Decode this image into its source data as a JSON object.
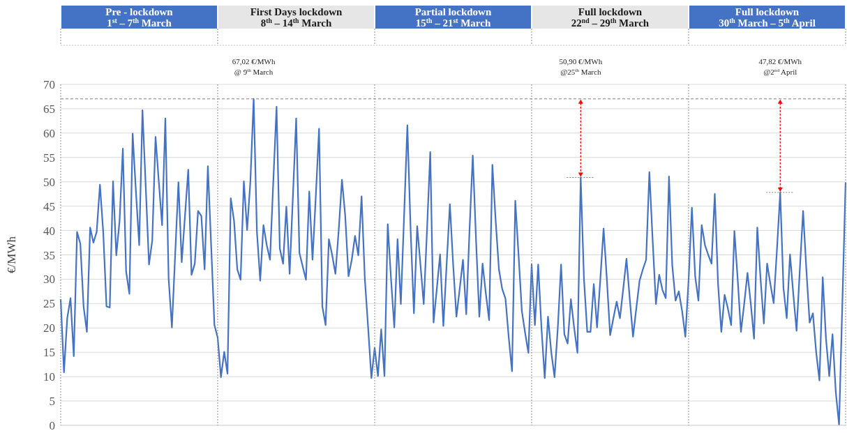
{
  "chart_data": {
    "type": "line",
    "ylabel": "€/MWh",
    "color": "#4472c4",
    "categories": [
      null,
      null,
      null,
      null,
      null,
      null,
      null,
      null,
      null,
      null,
      null,
      null,
      null,
      null,
      null,
      null,
      null,
      null,
      null,
      null,
      null,
      null,
      null,
      null,
      null,
      null,
      null,
      null,
      null,
      null,
      null,
      null,
      null,
      null,
      null,
      null,
      null,
      null,
      null,
      null,
      null,
      null,
      null,
      null,
      null,
      null,
      null,
      null,
      null,
      null,
      null,
      null,
      null,
      null,
      null,
      null,
      null,
      null,
      null,
      null,
      null,
      null,
      null,
      null,
      null,
      null,
      null,
      null,
      null,
      null,
      null,
      null,
      null,
      null,
      null,
      null,
      null,
      null,
      null,
      null,
      null,
      null,
      null,
      null,
      null,
      null,
      null,
      null,
      null,
      null,
      null,
      null,
      null,
      null,
      null,
      null,
      null,
      null,
      null,
      null,
      null,
      null,
      null,
      null,
      null,
      null,
      null,
      null,
      null,
      null,
      null,
      null,
      null,
      null,
      null,
      null,
      null,
      null,
      null,
      null,
      null,
      null,
      null,
      null,
      null,
      null,
      null,
      null,
      null,
      null,
      null,
      null,
      null,
      null,
      null,
      null,
      null,
      null,
      null,
      null,
      null,
      null,
      null,
      null,
      null,
      null,
      null,
      null,
      null,
      null,
      null,
      null,
      null,
      null,
      null,
      null,
      null,
      null,
      null,
      null,
      null,
      null,
      null,
      null,
      null,
      null,
      null,
      null,
      null,
      null,
      null,
      null,
      null,
      null,
      null,
      null,
      null,
      null,
      null,
      null,
      null,
      null,
      null,
      null,
      null,
      null,
      null,
      null,
      null,
      null,
      null,
      null,
      null,
      null,
      null,
      null,
      null,
      null,
      null,
      null,
      null,
      null,
      null,
      null,
      null,
      null,
      null,
      null,
      null,
      null,
      null,
      null,
      null,
      null,
      null,
      null,
      null,
      null,
      null,
      null,
      null,
      null,
      null,
      null,
      null,
      null,
      null,
      null,
      null,
      null,
      null,
      null,
      null,
      null,
      null,
      null,
      null,
      null,
      null,
      null,
      null
    ],
    "values": [
      25.9,
      10.9,
      22,
      26.1,
      14.2,
      39.7,
      37.3,
      24.4,
      19.2,
      40.6,
      37.5,
      39.7,
      49.4,
      39.7,
      24.4,
      24.2,
      50.1,
      34.9,
      42,
      56.8,
      31.6,
      27,
      59.9,
      48,
      37,
      64.7,
      49,
      33,
      38,
      59.2,
      50,
      41.1,
      63,
      30.1,
      20.1,
      35,
      49.9,
      33.5,
      43,
      52.5,
      30.9,
      33.2,
      44,
      43,
      32,
      53.2,
      37,
      20.6,
      18,
      9.9,
      15.1,
      10.6,
      46.6,
      42,
      32,
      29.9,
      50.1,
      40.1,
      50.1,
      67.02,
      39.7,
      29.7,
      41.1,
      37,
      34,
      50,
      65.4,
      36.3,
      33.2,
      44.9,
      31.1,
      47,
      63,
      35.4,
      32.6,
      29.9,
      48,
      34,
      47,
      60.9,
      24.4,
      20.6,
      38.2,
      35,
      31.1,
      40,
      50.4,
      43,
      30.6,
      34,
      38.9,
      34.9,
      47,
      30,
      20.1,
      9.7,
      15.9,
      10.1,
      19.7,
      10.1,
      41.3,
      30.1,
      20.1,
      38.2,
      24.9,
      43,
      61.6,
      40,
      23,
      40.9,
      33,
      24.9,
      40,
      56.1,
      21.1,
      28,
      35.1,
      20.4,
      33,
      45.4,
      33,
      22.3,
      28,
      34,
      22.8,
      40,
      55.4,
      38,
      22.3,
      33.2,
      27,
      21.6,
      53.5,
      42,
      32,
      28,
      26,
      18,
      11.1,
      46.1,
      35,
      23.5,
      19,
      14.9,
      33,
      20.6,
      33,
      20,
      9.7,
      22.3,
      15,
      9.9,
      20,
      33,
      18.7,
      16.8,
      25.9,
      20,
      14.9,
      50.9,
      30,
      19.2,
      19.2,
      29,
      20.1,
      30,
      40.4,
      30,
      18.5,
      22,
      25.4,
      22,
      28,
      34.2,
      26,
      18.2,
      24,
      29.7,
      32,
      34,
      52,
      38,
      24.9,
      30.9,
      27.8,
      26.1,
      51.1,
      32.8,
      25.6,
      27.5,
      23.5,
      18.2,
      30,
      44.7,
      30.6,
      25.6,
      41.1,
      37,
      35,
      33.2,
      47.5,
      29,
      19.2,
      26.8,
      24,
      20.6,
      39.9,
      30,
      19.2,
      25,
      31.3,
      25,
      17.8,
      40.6,
      30,
      20.9,
      33.2,
      29,
      25.1,
      36,
      47.82,
      28.2,
      22,
      35.1,
      27,
      19.4,
      32,
      44,
      32,
      21.1,
      23,
      15,
      9.2,
      30.4,
      17.8,
      10.1,
      18.7,
      6.8,
      0.1,
      25,
      49.9
    ],
    "ylim": [
      0,
      70
    ],
    "yticks": [
      0,
      5,
      10,
      15,
      20,
      25,
      30,
      35,
      40,
      45,
      50,
      55,
      60,
      65,
      70
    ],
    "tick_labels": "y",
    "grid": "y",
    "marker": "none",
    "line_style": "solid",
    "ref_lines": [
      {
        "axis": "y",
        "value": 67.02,
        "color": "#808080",
        "line_style": "dashed"
      }
    ],
    "annotations": [
      "Pre - lockdown\n1$^{st}$ – 7$^{th}$ March",
      "First Days lockdown\n8$^{th}$ – 14$^{th}$ March",
      "Partial lockdown\n15$^{th}$ – 21$^{st}$ March",
      "Full lockdown\n22$^{nd}$ – 29$^{th}$ March",
      "Full lockdown\n30$^{th}$ March – 5$^{th}$ April",
      "67,02 €/MWh\n@ 9$^{th}$ March",
      "50,90 €/MWh\n@25$^{th}$ March",
      "47,82 €/MWh\n@2$^{nd}$ April"
    ]
  }
}
